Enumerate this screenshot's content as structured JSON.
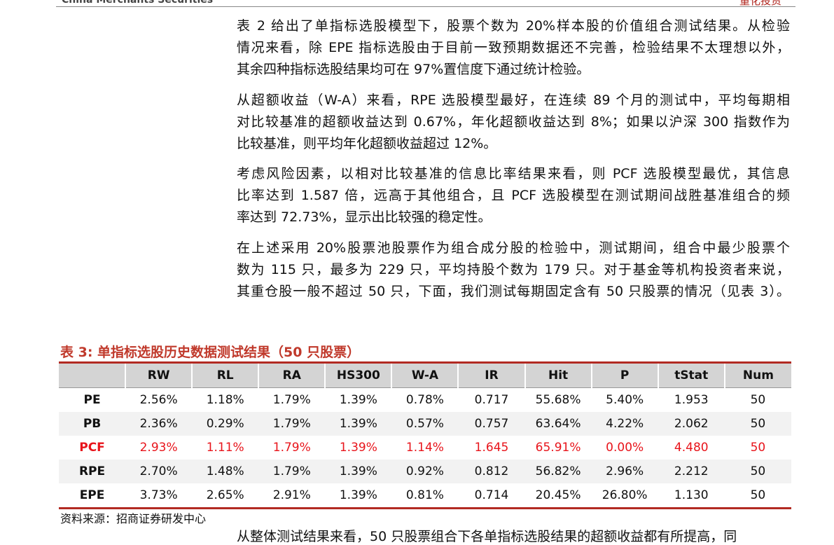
{
  "header": {
    "company": "China Merchants Securities",
    "section": "量化投资"
  },
  "paragraphs": [
    [
      "表 2 给出了单指标选股模型下，股票个数为 20%样本股的价值组合测试结果。从检验",
      "情况来看，除 EPE 指标选股由于目前一致预期数据还不完善，检验结果不太理想以外，",
      "其余四种指标选股结果均可在 97%置信度下通过统计检验。"
    ],
    [
      "从超额收益（W-A）来看，RPE 选股模型最好，在连续 89 个月的测试中，平均每期相",
      "对比较基准的超额收益达到 0.67%，年化超额收益达到 8%；如果以沪深 300 指数作为",
      "比较基准，则平均年化超额收益超过 12%。"
    ],
    [
      "考虑风险因素，以相对比较基准的信息比率结果来看，则 PCF 选股模型最优，其信息",
      "比率达到 1.587 倍，远高于其他组合，且 PCF 选股模型在测试期间战胜基准组合的频",
      "率达到 72.73%，显示出比较强的稳定性。"
    ],
    [
      "在上述采用 20%股票池股票作为组合成分股的检验中，测试期间，组合中最少股票个",
      "数为 115 只，最多为 229 只，平均持股个数为 179 只。对于基金等机构投资者来说，",
      "其重仓股一般不超过 50 只，下面，我们测试每期固定含有 50 只股票的情况（见表 3）。"
    ]
  ],
  "table": {
    "caption": "表 3:  单指标选股历史数据测试结果（50 只股票）",
    "columns": [
      "RW",
      "RL",
      "RA",
      "HS300",
      "W-A",
      "IR",
      "Hit",
      "P",
      "tStat",
      "Num"
    ],
    "rows": [
      {
        "label": "PE",
        "cells": [
          "2.56%",
          "1.18%",
          "1.79%",
          "1.39%",
          "0.78%",
          "0.717",
          "55.68%",
          "5.40%",
          "1.953",
          "50"
        ]
      },
      {
        "label": "PB",
        "cells": [
          "2.36%",
          "0.29%",
          "1.79%",
          "1.39%",
          "0.57%",
          "0.757",
          "63.64%",
          "4.22%",
          "2.062",
          "50"
        ]
      },
      {
        "label": "PCF",
        "cells": [
          "2.93%",
          "1.11%",
          "1.79%",
          "1.39%",
          "1.14%",
          "1.645",
          "65.91%",
          "0.00%",
          "4.480",
          "50"
        ],
        "color": "#e8141b"
      },
      {
        "label": "RPE",
        "cells": [
          "2.70%",
          "1.48%",
          "1.79%",
          "1.39%",
          "0.92%",
          "0.812",
          "56.82%",
          "2.96%",
          "2.212",
          "50"
        ]
      },
      {
        "label": "EPE",
        "cells": [
          "3.73%",
          "2.65%",
          "2.91%",
          "1.39%",
          "0.81%",
          "0.714",
          "20.45%",
          "26.80%",
          "1.130",
          "50"
        ]
      }
    ],
    "source": "资料来源：招商证券研发中心"
  },
  "continuation": "从整体测试结果来看，50 只股票组合下各单指标选股结果的超额收益都有所提高，同"
}
